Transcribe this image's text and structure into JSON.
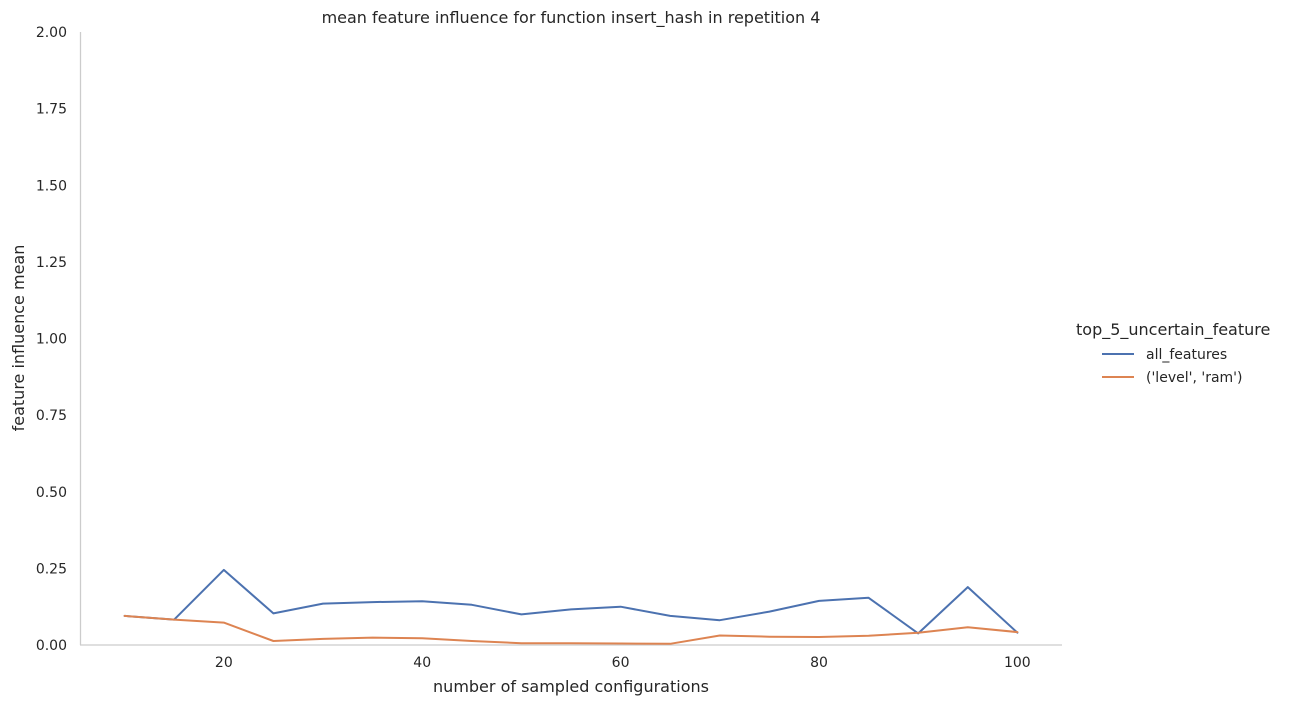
{
  "chart_data": {
    "type": "line",
    "title": "mean feature influence for function insert_hash in repetition 4",
    "xlabel": "number of sampled configurations",
    "ylabel": "feature influence mean",
    "xlim": [
      5.5,
      104.5
    ],
    "ylim": [
      0,
      2.0
    ],
    "xticks": [
      20,
      40,
      60,
      80,
      100
    ],
    "xtick_labels": [
      "20",
      "40",
      "60",
      "80",
      "100"
    ],
    "yticks": [
      0,
      0.25,
      0.5,
      0.75,
      1.0,
      1.25,
      1.5,
      1.75,
      2.0
    ],
    "ytick_labels": [
      "0.00",
      "0.25",
      "0.50",
      "0.75",
      "1.00",
      "1.25",
      "1.50",
      "1.75",
      "2.00"
    ],
    "grid": false,
    "legend": {
      "title": "top_5_uncertain_feature",
      "placement": "right"
    },
    "x": [
      10,
      15,
      20,
      25,
      30,
      35,
      40,
      45,
      50,
      55,
      60,
      65,
      70,
      75,
      80,
      85,
      90,
      95,
      100
    ],
    "series": [
      {
        "name": "all_features",
        "color": "#4c72b0",
        "values": [
          0.095,
          0.083,
          0.245,
          0.103,
          0.135,
          0.14,
          0.143,
          0.131,
          0.1,
          0.116,
          0.125,
          0.095,
          0.081,
          0.109,
          0.144,
          0.154,
          0.038,
          0.189,
          0.04
        ]
      },
      {
        "name": "('level', 'ram')",
        "color": "#dd8452",
        "values": [
          0.095,
          0.083,
          0.073,
          0.013,
          0.02,
          0.024,
          0.022,
          0.013,
          0.006,
          0.006,
          0.005,
          0.004,
          0.031,
          0.027,
          0.026,
          0.03,
          0.04,
          0.058,
          0.042
        ]
      }
    ]
  }
}
